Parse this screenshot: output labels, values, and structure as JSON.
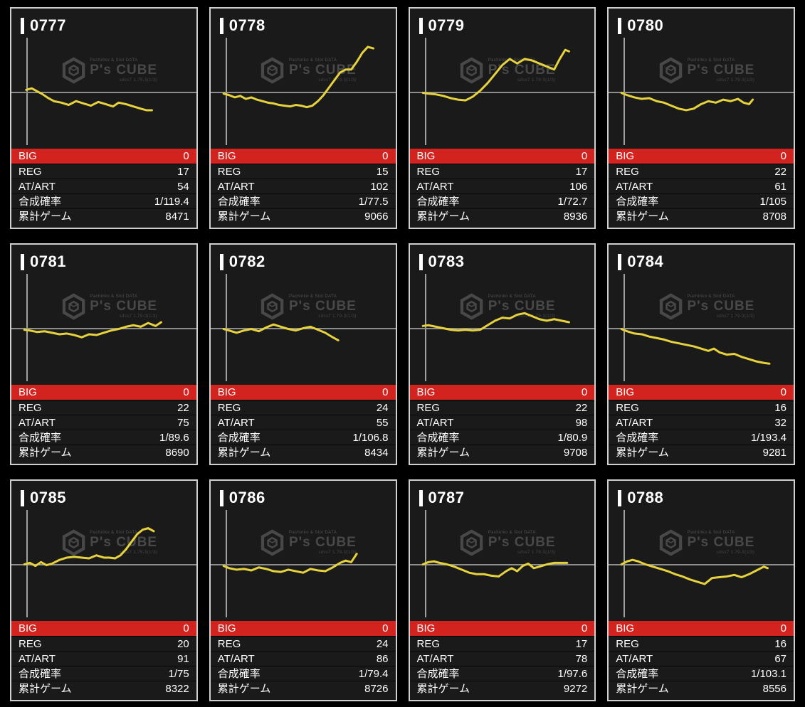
{
  "watermark": {
    "top_text": "Pachinko & Slot DATA",
    "brand": "P's CUBE",
    "sub_text": "sdss7 1.79-3(1/3)"
  },
  "stats_labels": {
    "big": "BIG",
    "reg": "REG",
    "atart": "AT/ART",
    "rate": "合成確率",
    "games": "累計ゲーム"
  },
  "colors": {
    "accent_red": "#d2231e",
    "line_yellow": "#e5d23d",
    "panel_bg": "#1a1a1a",
    "panel_border": "#cfcfcf",
    "baseline_gray": "#8d8d8d",
    "watermark_gray": "#4c4c4c"
  },
  "machines": [
    {
      "id": "0777",
      "big": "0",
      "reg": "17",
      "atart": "54",
      "rate": "1/119.4",
      "games": "8471",
      "slump": {
        "type": "line",
        "y_unit": "payout offset px from zero baseline, +up, half-height=75",
        "x": [
          8,
          11,
          14,
          17,
          20,
          23,
          27,
          31,
          35,
          39,
          43,
          47,
          51,
          55,
          58,
          62,
          66,
          70,
          73,
          76
        ],
        "y": [
          3,
          5,
          1,
          -3,
          -8,
          -12,
          -14,
          -17,
          -12,
          -15,
          -18,
          -13,
          -16,
          -19,
          -14,
          -16,
          -19,
          -22,
          -24,
          -24
        ]
      }
    },
    {
      "id": "0778",
      "big": "0",
      "reg": "15",
      "atart": "102",
      "rate": "1/77.5",
      "games": "9066",
      "slump": {
        "type": "line",
        "x": [
          7,
          10,
          13,
          16,
          19,
          22,
          25,
          28,
          31,
          34,
          37,
          40,
          43,
          46,
          49,
          52,
          55,
          58,
          61,
          64,
          67,
          70,
          73,
          76,
          79,
          82,
          85,
          88
        ],
        "y": [
          -2,
          -4,
          -7,
          -5,
          -9,
          -7,
          -10,
          -12,
          -14,
          -15,
          -17,
          -18,
          -19,
          -17,
          -18,
          -20,
          -18,
          -12,
          -4,
          6,
          16,
          26,
          30,
          30,
          40,
          52,
          60,
          58
        ]
      }
    },
    {
      "id": "0779",
      "big": "0",
      "reg": "17",
      "atart": "106",
      "rate": "1/72.7",
      "games": "8936",
      "slump": {
        "type": "line",
        "x": [
          7,
          10,
          14,
          18,
          22,
          26,
          30,
          34,
          38,
          42,
          46,
          50,
          54,
          58,
          62,
          66,
          70,
          74,
          78,
          81,
          84,
          86
        ],
        "y": [
          -1,
          -2,
          -3,
          -5,
          -8,
          -10,
          -11,
          -6,
          2,
          12,
          24,
          36,
          44,
          38,
          44,
          42,
          38,
          34,
          30,
          44,
          56,
          54
        ]
      }
    },
    {
      "id": "0780",
      "big": "0",
      "reg": "22",
      "atart": "61",
      "rate": "1/105",
      "games": "8708",
      "slump": {
        "type": "line",
        "x": [
          7,
          10,
          14,
          18,
          22,
          26,
          30,
          34,
          38,
          42,
          46,
          50,
          54,
          58,
          62,
          66,
          70,
          73,
          76,
          78
        ],
        "y": [
          -1,
          -4,
          -7,
          -9,
          -8,
          -12,
          -14,
          -18,
          -22,
          -24,
          -22,
          -16,
          -12,
          -14,
          -10,
          -12,
          -9,
          -14,
          -16,
          -10
        ]
      }
    },
    {
      "id": "0781",
      "big": "0",
      "reg": "22",
      "atart": "75",
      "rate": "1/89.6",
      "games": "8690",
      "slump": {
        "type": "line",
        "x": [
          7,
          10,
          14,
          18,
          22,
          26,
          30,
          34,
          38,
          42,
          46,
          50,
          54,
          58,
          62,
          66,
          70,
          74,
          78,
          81
        ],
        "y": [
          -2,
          -3,
          -5,
          -4,
          -6,
          -8,
          -7,
          -9,
          -12,
          -8,
          -9,
          -6,
          -3,
          -1,
          2,
          4,
          2,
          7,
          3,
          8
        ]
      }
    },
    {
      "id": "0782",
      "big": "0",
      "reg": "24",
      "atart": "55",
      "rate": "1/106.8",
      "games": "8434",
      "slump": {
        "type": "line",
        "x": [
          7,
          10,
          14,
          18,
          22,
          26,
          30,
          34,
          38,
          42,
          46,
          50,
          54,
          58,
          62,
          66,
          69
        ],
        "y": [
          -1,
          -3,
          -6,
          -3,
          -1,
          -4,
          1,
          5,
          2,
          -1,
          -3,
          0,
          2,
          -2,
          -6,
          -12,
          -16
        ]
      }
    },
    {
      "id": "0783",
      "big": "0",
      "reg": "22",
      "atart": "98",
      "rate": "1/80.9",
      "games": "9708",
      "slump": {
        "type": "line",
        "x": [
          7,
          10,
          14,
          18,
          22,
          26,
          30,
          34,
          38,
          42,
          46,
          50,
          54,
          58,
          62,
          66,
          70,
          74,
          78,
          82,
          86
        ],
        "y": [
          3,
          4,
          2,
          0,
          -2,
          -3,
          -2,
          -3,
          -2,
          4,
          10,
          14,
          13,
          18,
          20,
          16,
          12,
          10,
          12,
          10,
          8
        ]
      }
    },
    {
      "id": "0784",
      "big": "0",
      "reg": "16",
      "atart": "32",
      "rate": "1/193.4",
      "games": "9281",
      "slump": {
        "type": "line",
        "x": [
          7,
          10,
          14,
          18,
          22,
          26,
          30,
          34,
          38,
          42,
          46,
          50,
          54,
          57,
          60,
          64,
          68,
          72,
          76,
          80,
          84,
          87
        ],
        "y": [
          -1,
          -4,
          -7,
          -8,
          -11,
          -13,
          -15,
          -18,
          -20,
          -22,
          -24,
          -27,
          -30,
          -27,
          -32,
          -35,
          -34,
          -38,
          -41,
          -44,
          -46,
          -47
        ]
      }
    },
    {
      "id": "0785",
      "big": "0",
      "reg": "20",
      "atart": "91",
      "rate": "1/75",
      "games": "8322",
      "slump": {
        "type": "line",
        "x": [
          7,
          10,
          13,
          16,
          19,
          22,
          26,
          30,
          34,
          38,
          42,
          46,
          50,
          53,
          56,
          59,
          62,
          65,
          68,
          71,
          74,
          77
        ],
        "y": [
          0,
          2,
          -2,
          3,
          -1,
          1,
          6,
          9,
          10,
          9,
          8,
          12,
          9,
          9,
          8,
          12,
          20,
          30,
          40,
          46,
          48,
          44
        ]
      }
    },
    {
      "id": "0786",
      "big": "0",
      "reg": "24",
      "atart": "86",
      "rate": "1/79.4",
      "games": "8726",
      "slump": {
        "type": "line",
        "x": [
          7,
          10,
          14,
          18,
          22,
          26,
          30,
          34,
          38,
          42,
          46,
          50,
          54,
          58,
          62,
          66,
          70,
          73,
          76,
          79
        ],
        "y": [
          -2,
          -5,
          -7,
          -6,
          -8,
          -4,
          -6,
          -9,
          -10,
          -7,
          -9,
          -11,
          -6,
          -8,
          -9,
          -4,
          2,
          5,
          3,
          14
        ]
      }
    },
    {
      "id": "0787",
      "big": "0",
      "reg": "17",
      "atart": "78",
      "rate": "1/97.6",
      "games": "9272",
      "slump": {
        "type": "line",
        "x": [
          7,
          10,
          13,
          16,
          20,
          24,
          28,
          32,
          36,
          40,
          44,
          48,
          52,
          55,
          58,
          61,
          64,
          67,
          70,
          74,
          78,
          82,
          85
        ],
        "y": [
          0,
          3,
          4,
          2,
          0,
          -3,
          -7,
          -11,
          -13,
          -13,
          -15,
          -16,
          -9,
          -5,
          -9,
          -2,
          1,
          -5,
          -3,
          0,
          2,
          2,
          2
        ]
      }
    },
    {
      "id": "0788",
      "big": "0",
      "reg": "16",
      "atart": "67",
      "rate": "1/103.1",
      "games": "8556",
      "slump": {
        "type": "line",
        "x": [
          7,
          10,
          13,
          16,
          20,
          24,
          28,
          32,
          36,
          40,
          44,
          48,
          52,
          56,
          60,
          64,
          68,
          72,
          76,
          80,
          84,
          86
        ],
        "y": [
          0,
          4,
          6,
          4,
          0,
          -3,
          -6,
          -9,
          -13,
          -16,
          -20,
          -23,
          -26,
          -18,
          -17,
          -16,
          -14,
          -17,
          -13,
          -8,
          -3,
          -5
        ]
      }
    }
  ]
}
